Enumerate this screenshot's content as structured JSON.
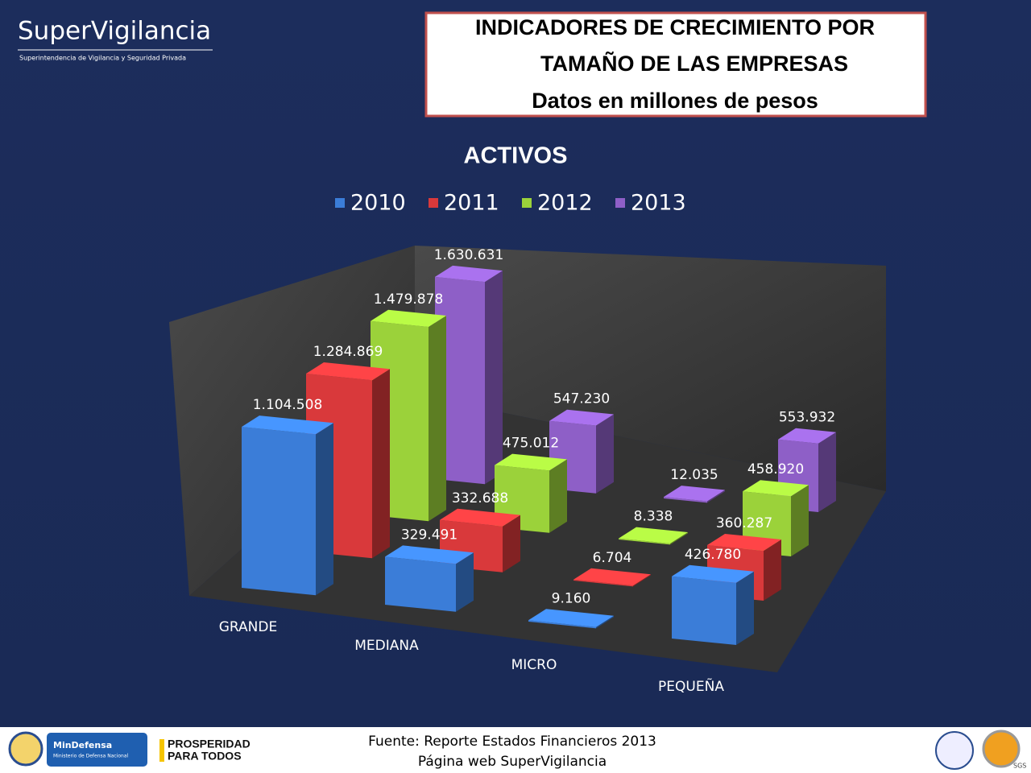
{
  "header": {
    "logo": "SuperVigilancia",
    "logo_subtitle": "Superintendencia de Vigilancia y Seguridad Privada",
    "title_lines": [
      "INDICADORES DE CRECIMIENTO POR",
      "TAMAÑO DE LAS EMPRESAS",
      "Datos en millones de pesos"
    ]
  },
  "chart_data": {
    "type": "bar",
    "title": "ACTIVOS",
    "categories": [
      "GRANDE",
      "MEDIANA",
      "MICRO",
      "PEQUEÑA"
    ],
    "series": [
      {
        "name": "2010",
        "color": "#3b7dd8",
        "values": [
          1104508,
          329491,
          9160,
          426780
        ],
        "value_labels": [
          "1.104.508",
          "329.491",
          "9.160",
          "426.780"
        ]
      },
      {
        "name": "2011",
        "color": "#d9393b",
        "values": [
          1284869,
          332688,
          6704,
          360287
        ],
        "value_labels": [
          "1.284.869",
          "332.688",
          "6.704",
          "360.287"
        ]
      },
      {
        "name": "2012",
        "color": "#9bd23a",
        "values": [
          1479878,
          475012,
          8338,
          458920
        ],
        "value_labels": [
          "1.479.878",
          "475.012",
          "8.338",
          "458.920"
        ]
      },
      {
        "name": "2013",
        "color": "#8e5fc7",
        "values": [
          1630631,
          547230,
          12035,
          553932
        ],
        "value_labels": [
          "1.630.631",
          "547.230",
          "12.035",
          "553.932"
        ]
      }
    ],
    "legend": "top"
  },
  "footer": {
    "source_lines": [
      "Fuente: Reporte Estados Financieros 2013",
      "Página web SuperVigilancia"
    ],
    "logos": {
      "mindefensa": "MinDefensa",
      "mindefensa_sub": "Ministerio de Defensa Nacional",
      "prosperidad": [
        "PROSPERIDAD",
        "PARA TODOS"
      ],
      "sgs": "SGS"
    }
  }
}
